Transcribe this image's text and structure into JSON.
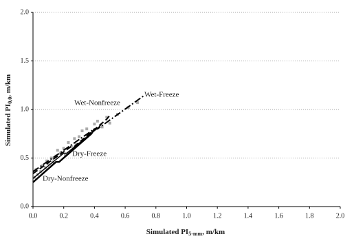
{
  "chart_data": {
    "type": "line",
    "x_label": {
      "text": "Simulated PI",
      "sub": "5-mm",
      "suffix": ", m/km"
    },
    "y_label": {
      "text": "Simulated PI",
      "sub": "0,0",
      "suffix": ", m/km"
    },
    "xlim": [
      0,
      2
    ],
    "ylim": [
      0,
      2
    ],
    "xticks": [
      {
        "value": 0,
        "label": "0.0"
      },
      {
        "value": 0.2,
        "label": "0.2"
      },
      {
        "value": 0.4,
        "label": "0.4"
      },
      {
        "value": 0.6,
        "label": "0.6"
      },
      {
        "value": 0.8,
        "label": "0.8"
      },
      {
        "value": 1,
        "label": "1.0"
      },
      {
        "value": 1.2,
        "label": "1.2"
      },
      {
        "value": 1.4,
        "label": "1.4"
      },
      {
        "value": 1.6,
        "label": "1.6"
      },
      {
        "value": 1.8,
        "label": "1.8"
      },
      {
        "value": 2,
        "label": "2.0"
      }
    ],
    "yticks": [
      {
        "value": 0,
        "label": "0.0"
      },
      {
        "value": 0.5,
        "label": "0.5"
      },
      {
        "value": 1,
        "label": "1.0"
      },
      {
        "value": 1.5,
        "label": "1.5"
      },
      {
        "value": 2,
        "label": "2.0"
      }
    ],
    "grid": true,
    "scatter": {
      "color": "#aaaaaa",
      "x": [
        0.01,
        0.02,
        0.03,
        0.05,
        0.06,
        0.08,
        0.09,
        0.1,
        0.12,
        0.13,
        0.15,
        0.16,
        0.18,
        0.2,
        0.21,
        0.23,
        0.25,
        0.27,
        0.28,
        0.3,
        0.32,
        0.33,
        0.35,
        0.37,
        0.4,
        0.42,
        0.45,
        0.48,
        0.5,
        0.55,
        0.62,
        0.68
      ],
      "y": [
        0.3,
        0.38,
        0.33,
        0.36,
        0.42,
        0.4,
        0.47,
        0.44,
        0.5,
        0.46,
        0.52,
        0.58,
        0.55,
        0.6,
        0.53,
        0.66,
        0.62,
        0.7,
        0.64,
        0.72,
        0.78,
        0.69,
        0.8,
        0.75,
        0.85,
        0.88,
        0.82,
        0.92,
        0.86,
        0.95,
        1.02,
        1.07
      ]
    },
    "series": [
      {
        "name": "Dry-Nonfreeze",
        "color": "#000000",
        "dash": "",
        "width": 2.5,
        "x": [
          0,
          0.15,
          0.17,
          0.38,
          0.4
        ],
        "y": [
          0.25,
          0.46,
          0.46,
          0.75,
          0.8
        ]
      },
      {
        "name": "Dry-Freeze",
        "color": "#000000",
        "dash": "",
        "width": 1.5,
        "x": [
          0,
          0.2,
          0.22,
          0.43,
          0.45
        ],
        "y": [
          0.29,
          0.55,
          0.55,
          0.82,
          0.86
        ]
      },
      {
        "name": "Wet-Nonfreeze",
        "color": "#000000",
        "dash": "8 4",
        "width": 2,
        "x": [
          0,
          0.25,
          0.27,
          0.48,
          0.5
        ],
        "y": [
          0.34,
          0.62,
          0.62,
          0.9,
          0.94
        ]
      },
      {
        "name": "Wet-Freeze",
        "color": "#000000",
        "dash": "10 3 2 3",
        "width": 2,
        "x": [
          0,
          0.4,
          0.42,
          0.72
        ],
        "y": [
          0.36,
          0.8,
          0.8,
          1.14
        ]
      }
    ]
  }
}
